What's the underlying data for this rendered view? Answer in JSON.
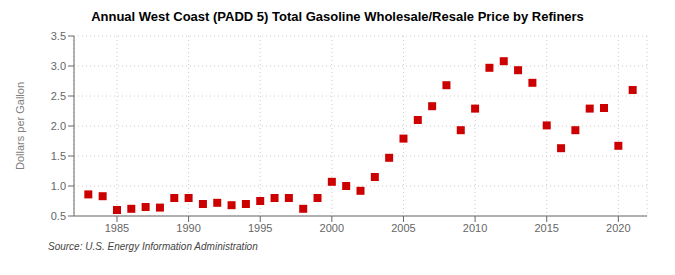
{
  "chart_data": {
    "type": "scatter",
    "title": "Annual West Coast (PADD 5) Total Gasoline Wholesale/Resale Price by Refiners",
    "ylabel": "Dollars per Gallon",
    "annotations": [
      "Source: U.S. Energy Information Administration"
    ],
    "x": [
      1983,
      1984,
      1985,
      1986,
      1987,
      1988,
      1989,
      1990,
      1991,
      1992,
      1993,
      1994,
      1995,
      1996,
      1997,
      1998,
      1999,
      2000,
      2001,
      2002,
      2003,
      2004,
      2005,
      2006,
      2007,
      2008,
      2009,
      2010,
      2011,
      2012,
      2013,
      2014,
      2015,
      2016,
      2017,
      2018,
      2019,
      2020,
      2021
    ],
    "values": [
      0.86,
      0.83,
      0.6,
      0.62,
      0.65,
      0.64,
      0.8,
      0.8,
      0.7,
      0.72,
      0.68,
      0.7,
      0.75,
      0.8,
      0.8,
      0.62,
      0.8,
      1.07,
      1.0,
      0.92,
      1.15,
      1.47,
      1.79,
      2.1,
      2.33,
      2.68,
      1.93,
      2.29,
      2.97,
      3.08,
      2.93,
      2.72,
      2.01,
      1.63,
      1.93,
      2.29,
      2.3,
      1.67,
      2.6
    ],
    "color": "#CC0000",
    "marker": "square",
    "xlim": [
      1982,
      2022
    ],
    "xticks": [
      1985,
      1990,
      1995,
      2000,
      2005,
      2010,
      2015,
      2020
    ],
    "ylim": [
      0.5,
      3.5
    ],
    "yticks": [
      0.5,
      {
        "value": 1,
        "label": "1.0"
      },
      1.5,
      {
        "value": 2,
        "label": "2.0"
      },
      2.5,
      {
        "value": 3,
        "label": "3.0"
      },
      3.5
    ],
    "grid": true
  }
}
